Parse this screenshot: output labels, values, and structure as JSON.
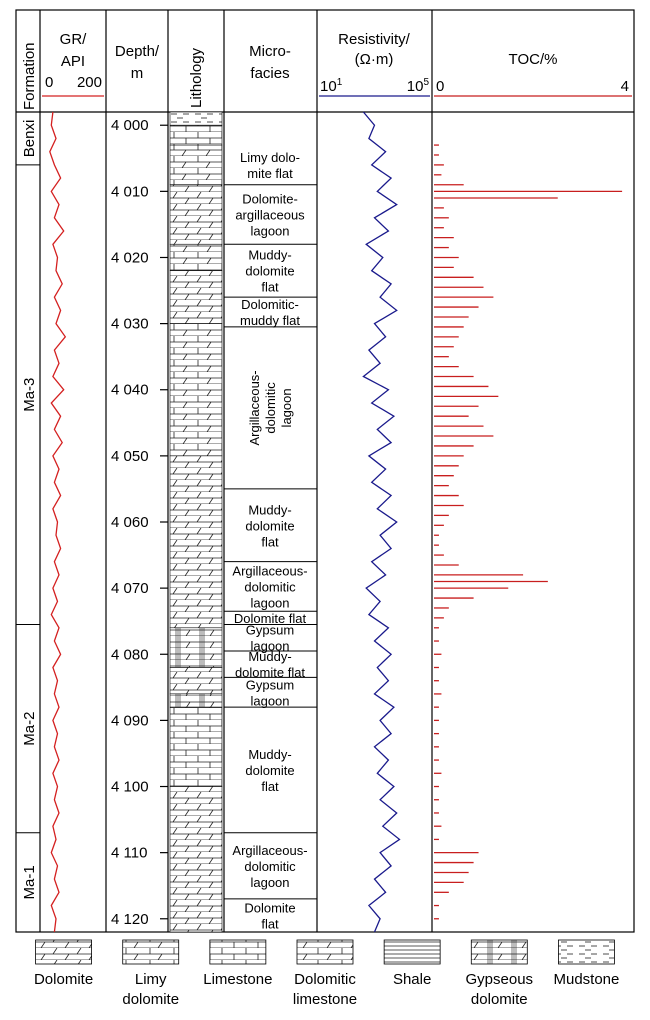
{
  "headers": {
    "formation": "Formation",
    "gr_line1": "GR/",
    "gr_line2": "API",
    "gr_min": "0",
    "gr_max": "200",
    "depth_line1": "Depth/",
    "depth_line2": "m",
    "lithology": "Lithology",
    "micro_line1": "Micro-",
    "micro_line2": "facies",
    "res_line1": "Resistivity/",
    "res_line2": "(Ω·m)",
    "res_min_base": "10",
    "res_min_exp": "1",
    "res_max_base": "10",
    "res_max_exp": "5",
    "toc_title": "TOC/%",
    "toc_min": "0",
    "toc_max": "4"
  },
  "colors": {
    "gr": "#d42020",
    "resistivity": "#1a1a8c",
    "toc": "#c81e1e"
  },
  "formations": [
    {
      "name": "Benxi",
      "top": 3998,
      "bottom": 4006
    },
    {
      "name": "Ma-3",
      "top": 4006,
      "bottom": 4075.5
    },
    {
      "name": "Ma-2",
      "top": 4075.5,
      "bottom": 4107
    },
    {
      "name": "Ma-1",
      "top": 4107,
      "bottom": 4122
    }
  ],
  "depth_ticks": [
    "4 000",
    "4 010",
    "4 020",
    "4 030",
    "4 040",
    "4 050",
    "4 060",
    "4 070",
    "4 080",
    "4 090",
    "4 100",
    "4 110",
    "4 120"
  ],
  "microfacies": [
    {
      "lines": [
        "Limy dolo-",
        "mite flat"
      ],
      "top": 4003,
      "bottom": 4009
    },
    {
      "lines": [
        "Dolomite-",
        "argillaceous",
        "lagoon"
      ],
      "top": 4009,
      "bottom": 4018
    },
    {
      "lines": [
        "Muddy-",
        "dolomite",
        "flat"
      ],
      "top": 4018,
      "bottom": 4026
    },
    {
      "lines": [
        "Dolomitic-",
        "muddy flat"
      ],
      "top": 4026,
      "bottom": 4030.5
    },
    {
      "lines": [
        "Argillaceous-",
        "dolomitic",
        "lagoon"
      ],
      "top": 4030.5,
      "bottom": 4055,
      "vertical": true
    },
    {
      "lines": [
        "Muddy-",
        "dolomite",
        "flat"
      ],
      "top": 4055,
      "bottom": 4066
    },
    {
      "lines": [
        "Argillaceous-",
        "dolomitic",
        "lagoon"
      ],
      "top": 4066,
      "bottom": 4073.5
    },
    {
      "lines": [
        "Dolomite flat"
      ],
      "top": 4073.5,
      "bottom": 4075.5
    },
    {
      "lines": [
        "Gypsum",
        "lagoon"
      ],
      "top": 4075.5,
      "bottom": 4079.5
    },
    {
      "lines": [
        "Muddy-",
        "dolomite flat"
      ],
      "top": 4079.5,
      "bottom": 4083.5
    },
    {
      "lines": [
        "Gypsum",
        "lagoon"
      ],
      "top": 4083.5,
      "bottom": 4088
    },
    {
      "lines": [
        "Muddy-",
        "dolomite",
        "flat"
      ],
      "top": 4088,
      "bottom": 4107
    },
    {
      "lines": [
        "Argillaceous-",
        "dolomitic",
        "lagoon"
      ],
      "top": 4107,
      "bottom": 4117
    },
    {
      "lines": [
        "Dolomite",
        "flat"
      ],
      "top": 4117,
      "bottom": 4122
    }
  ],
  "lithology_intervals": [
    {
      "type": "mudstone",
      "top": 3998,
      "bottom": 4000
    },
    {
      "type": "limestone",
      "top": 4000,
      "bottom": 4003
    },
    {
      "type": "limy_dolomite",
      "top": 4003,
      "bottom": 4009
    },
    {
      "type": "dolomite",
      "top": 4009,
      "bottom": 4018
    },
    {
      "type": "dolomitic_limestone",
      "top": 4018,
      "bottom": 4022
    },
    {
      "type": "dolomite",
      "top": 4022,
      "bottom": 4030
    },
    {
      "type": "dolomitic_limestone",
      "top": 4030,
      "bottom": 4050
    },
    {
      "type": "dolomite",
      "top": 4050,
      "bottom": 4076
    },
    {
      "type": "gypseous_dolomite",
      "top": 4076,
      "bottom": 4082
    },
    {
      "type": "dolomite",
      "top": 4082,
      "bottom": 4086
    },
    {
      "type": "gypseous_dolomite",
      "top": 4086,
      "bottom": 4088
    },
    {
      "type": "limestone",
      "top": 4088,
      "bottom": 4100
    },
    {
      "type": "dolomite",
      "top": 4100,
      "bottom": 4122
    }
  ],
  "legend": [
    {
      "type": "dolomite",
      "lines": [
        "Dolomite"
      ]
    },
    {
      "type": "limy_dolomite",
      "lines": [
        "Limy",
        "dolomite"
      ]
    },
    {
      "type": "limestone",
      "lines": [
        "Limestone"
      ]
    },
    {
      "type": "dolomitic_limestone",
      "lines": [
        "Dolomitic",
        "limestone"
      ]
    },
    {
      "type": "shale",
      "lines": [
        "Shale"
      ]
    },
    {
      "type": "gypseous_dolomite",
      "lines": [
        "Gypseous",
        "dolomite"
      ]
    },
    {
      "type": "mudstone",
      "lines": [
        "Mudstone"
      ]
    }
  ],
  "chart_data": {
    "type": "line",
    "depth_range": [
      3998,
      4122
    ],
    "gr_range": [
      0,
      200
    ],
    "resistivity_range_log10": [
      1,
      5
    ],
    "toc_range": [
      0,
      4
    ],
    "gr_api": [
      [
        3998,
        35
      ],
      [
        4000,
        30
      ],
      [
        4002,
        45
      ],
      [
        4004,
        25
      ],
      [
        4006,
        40
      ],
      [
        4008,
        60
      ],
      [
        4010,
        30
      ],
      [
        4012,
        55
      ],
      [
        4014,
        40
      ],
      [
        4016,
        70
      ],
      [
        4018,
        35
      ],
      [
        4020,
        50
      ],
      [
        4022,
        45
      ],
      [
        4024,
        65
      ],
      [
        4026,
        40
      ],
      [
        4028,
        60
      ],
      [
        4030,
        45
      ],
      [
        4032,
        75
      ],
      [
        4034,
        40
      ],
      [
        4036,
        55
      ],
      [
        4038,
        35
      ],
      [
        4040,
        70
      ],
      [
        4042,
        30
      ],
      [
        4044,
        60
      ],
      [
        4046,
        40
      ],
      [
        4048,
        65
      ],
      [
        4050,
        35
      ],
      [
        4052,
        55
      ],
      [
        4054,
        40
      ],
      [
        4056,
        60
      ],
      [
        4058,
        35
      ],
      [
        4060,
        50
      ],
      [
        4062,
        45
      ],
      [
        4064,
        60
      ],
      [
        4066,
        40
      ],
      [
        4068,
        55
      ],
      [
        4070,
        35
      ],
      [
        4072,
        50
      ],
      [
        4074,
        30
      ],
      [
        4076,
        55
      ],
      [
        4078,
        40
      ],
      [
        4080,
        60
      ],
      [
        4082,
        35
      ],
      [
        4084,
        50
      ],
      [
        4086,
        40
      ],
      [
        4088,
        55
      ],
      [
        4090,
        35
      ],
      [
        4092,
        50
      ],
      [
        4094,
        40
      ],
      [
        4096,
        55
      ],
      [
        4098,
        35
      ],
      [
        4100,
        50
      ],
      [
        4102,
        40
      ],
      [
        4104,
        55
      ],
      [
        4106,
        35
      ],
      [
        4108,
        45
      ],
      [
        4110,
        30
      ],
      [
        4112,
        50
      ],
      [
        4114,
        40
      ],
      [
        4116,
        55
      ],
      [
        4118,
        30
      ],
      [
        4120,
        45
      ],
      [
        4122,
        40
      ]
    ],
    "resistivity_log10": [
      [
        3998,
        2.6
      ],
      [
        4000,
        3.0
      ],
      [
        4002,
        2.8
      ],
      [
        4004,
        3.4
      ],
      [
        4006,
        2.9
      ],
      [
        4008,
        3.6
      ],
      [
        4010,
        3.1
      ],
      [
        4012,
        3.8
      ],
      [
        4014,
        3.0
      ],
      [
        4016,
        3.5
      ],
      [
        4018,
        2.7
      ],
      [
        4020,
        3.3
      ],
      [
        4022,
        2.9
      ],
      [
        4024,
        3.6
      ],
      [
        4026,
        3.2
      ],
      [
        4028,
        3.8
      ],
      [
        4030,
        3.0
      ],
      [
        4032,
        3.4
      ],
      [
        4034,
        2.8
      ],
      [
        4036,
        3.2
      ],
      [
        4038,
        2.6
      ],
      [
        4040,
        3.5
      ],
      [
        4042,
        2.9
      ],
      [
        4044,
        3.7
      ],
      [
        4046,
        3.1
      ],
      [
        4048,
        3.6
      ],
      [
        4050,
        2.8
      ],
      [
        4052,
        3.4
      ],
      [
        4054,
        2.9
      ],
      [
        4056,
        3.6
      ],
      [
        4058,
        3.1
      ],
      [
        4060,
        3.8
      ],
      [
        4062,
        3.2
      ],
      [
        4064,
        3.6
      ],
      [
        4066,
        2.9
      ],
      [
        4068,
        3.4
      ],
      [
        4070,
        2.7
      ],
      [
        4072,
        3.2
      ],
      [
        4074,
        2.8
      ],
      [
        4076,
        3.5
      ],
      [
        4078,
        3.0
      ],
      [
        4080,
        3.6
      ],
      [
        4082,
        3.1
      ],
      [
        4084,
        3.5
      ],
      [
        4086,
        3.0
      ],
      [
        4088,
        3.7
      ],
      [
        4090,
        3.2
      ],
      [
        4092,
        3.6
      ],
      [
        4094,
        3.0
      ],
      [
        4096,
        3.5
      ],
      [
        4098,
        3.1
      ],
      [
        4100,
        3.7
      ],
      [
        4102,
        3.2
      ],
      [
        4104,
        3.8
      ],
      [
        4106,
        3.3
      ],
      [
        4108,
        3.9
      ],
      [
        4110,
        3.2
      ],
      [
        4112,
        3.6
      ],
      [
        4114,
        3.0
      ],
      [
        4116,
        3.4
      ],
      [
        4118,
        2.8
      ],
      [
        4120,
        3.2
      ],
      [
        4122,
        3.0
      ]
    ],
    "toc_percent": [
      [
        4003,
        0.1
      ],
      [
        4004.5,
        0.1
      ],
      [
        4006,
        0.2
      ],
      [
        4007.5,
        0.15
      ],
      [
        4009,
        0.6
      ],
      [
        4010,
        3.8
      ],
      [
        4011,
        2.5
      ],
      [
        4012.5,
        0.2
      ],
      [
        4014,
        0.3
      ],
      [
        4015.5,
        0.2
      ],
      [
        4017,
        0.4
      ],
      [
        4018.5,
        0.3
      ],
      [
        4020,
        0.5
      ],
      [
        4021.5,
        0.4
      ],
      [
        4023,
        0.8
      ],
      [
        4024.5,
        1.0
      ],
      [
        4026,
        1.2
      ],
      [
        4027.5,
        0.9
      ],
      [
        4029,
        0.7
      ],
      [
        4030.5,
        0.6
      ],
      [
        4032,
        0.5
      ],
      [
        4033.5,
        0.4
      ],
      [
        4035,
        0.3
      ],
      [
        4036.5,
        0.5
      ],
      [
        4038,
        0.8
      ],
      [
        4039.5,
        1.1
      ],
      [
        4041,
        1.3
      ],
      [
        4042.5,
        0.9
      ],
      [
        4044,
        0.7
      ],
      [
        4045.5,
        1.0
      ],
      [
        4047,
        1.2
      ],
      [
        4048.5,
        0.8
      ],
      [
        4050,
        0.6
      ],
      [
        4051.5,
        0.5
      ],
      [
        4053,
        0.4
      ],
      [
        4054.5,
        0.3
      ],
      [
        4056,
        0.5
      ],
      [
        4057.5,
        0.6
      ],
      [
        4059,
        0.3
      ],
      [
        4060.5,
        0.2
      ],
      [
        4062,
        0.1
      ],
      [
        4063.5,
        0.1
      ],
      [
        4065,
        0.2
      ],
      [
        4066.5,
        0.5
      ],
      [
        4068,
        1.8
      ],
      [
        4069,
        2.3
      ],
      [
        4070,
        1.5
      ],
      [
        4071.5,
        0.8
      ],
      [
        4073,
        0.3
      ],
      [
        4074.5,
        0.2
      ],
      [
        4076,
        0.1
      ],
      [
        4078,
        0.1
      ],
      [
        4080,
        0.15
      ],
      [
        4082,
        0.1
      ],
      [
        4084,
        0.1
      ],
      [
        4086,
        0.15
      ],
      [
        4088,
        0.1
      ],
      [
        4090,
        0.1
      ],
      [
        4092,
        0.1
      ],
      [
        4094,
        0.1
      ],
      [
        4096,
        0.1
      ],
      [
        4098,
        0.15
      ],
      [
        4100,
        0.1
      ],
      [
        4102,
        0.1
      ],
      [
        4104,
        0.1
      ],
      [
        4106,
        0.15
      ],
      [
        4108,
        0.1
      ],
      [
        4110,
        0.9
      ],
      [
        4111.5,
        0.8
      ],
      [
        4113,
        0.7
      ],
      [
        4114.5,
        0.6
      ],
      [
        4116,
        0.3
      ],
      [
        4118,
        0.1
      ],
      [
        4120,
        0.1
      ]
    ]
  }
}
